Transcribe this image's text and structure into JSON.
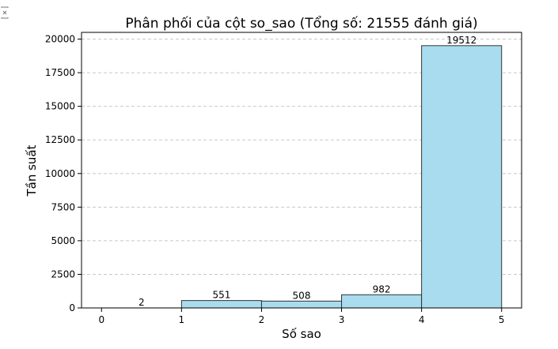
{
  "chart_data": {
    "type": "bar",
    "title": "Phân phối của cột so_sao (Tổng số: 21555 đánh giá)",
    "xlabel": "Số sao",
    "ylabel": "Tần suất",
    "bins": [
      [
        0,
        1
      ],
      [
        1,
        2
      ],
      [
        2,
        3
      ],
      [
        3,
        4
      ],
      [
        4,
        5
      ]
    ],
    "values": [
      2,
      551,
      508,
      982,
      19512
    ],
    "value_labels": [
      "2",
      "551",
      "508",
      "982",
      "19512"
    ],
    "xlim": [
      -0.25,
      5.25
    ],
    "ylim": [
      0,
      20500
    ],
    "xticks": [
      0,
      1,
      2,
      3,
      4,
      5
    ],
    "xtick_labels": [
      "0",
      "1",
      "2",
      "3",
      "4",
      "5"
    ],
    "yticks": [
      0,
      2500,
      5000,
      7500,
      10000,
      12500,
      15000,
      17500,
      20000
    ],
    "ytick_labels": [
      "0",
      "2500",
      "5000",
      "7500",
      "10000",
      "12500",
      "15000",
      "17500",
      "20000"
    ],
    "grid": "y-dashed",
    "bar_color": "#a8dcee",
    "edge_color": "#333333"
  }
}
